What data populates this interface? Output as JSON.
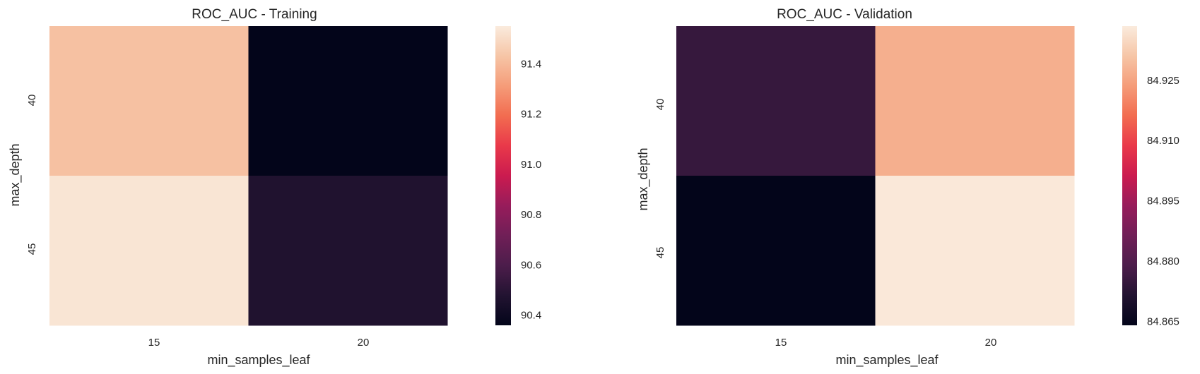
{
  "chart_data": [
    {
      "type": "heatmap",
      "title": "ROC_AUC - Training",
      "xlabel": "min_samples_leaf",
      "ylabel": "max_depth",
      "x_categories": [
        "15",
        "20"
      ],
      "y_categories": [
        "40",
        "45"
      ],
      "values": [
        [
          91.42,
          90.36
        ],
        [
          91.53,
          90.47
        ]
      ],
      "colorbar": {
        "min": 90.36,
        "max": 91.55,
        "ticks": [
          "90.4",
          "90.6",
          "90.8",
          "91.0",
          "91.2",
          "91.4"
        ]
      },
      "colormap": "rocket",
      "grid": false
    },
    {
      "type": "heatmap",
      "title": "ROC_AUC - Validation",
      "xlabel": "min_samples_leaf",
      "ylabel": "max_depth",
      "x_categories": [
        "15",
        "20"
      ],
      "y_categories": [
        "40",
        "45"
      ],
      "values": [
        [
          84.875,
          84.927
        ],
        [
          84.864,
          84.938
        ]
      ],
      "colorbar": {
        "min": 84.864,
        "max": 84.9385,
        "ticks": [
          "84.865",
          "84.880",
          "84.895",
          "84.910",
          "84.925"
        ]
      },
      "colormap": "rocket",
      "grid": false
    }
  ]
}
